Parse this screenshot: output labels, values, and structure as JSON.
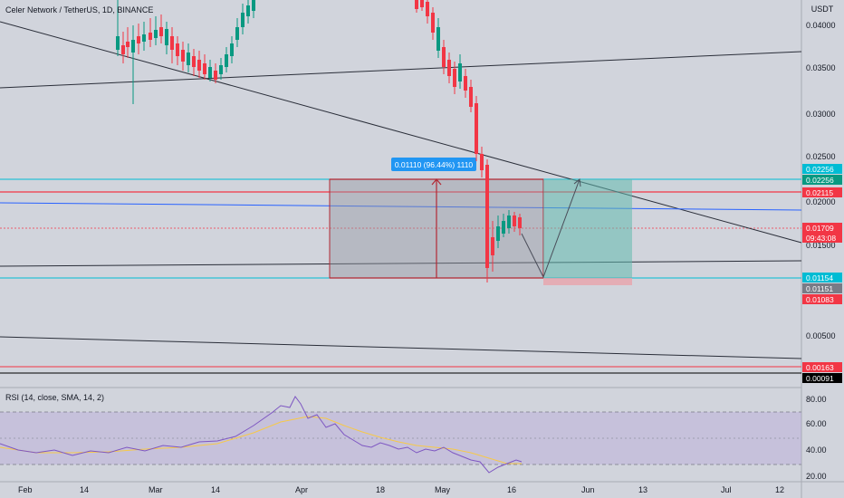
{
  "header": {
    "symbol_title": "Celer Network / TetherUS, 1D, BINANCE"
  },
  "price_axis": {
    "currency": "USDT",
    "ticks": [
      "0.04000",
      "0.03500",
      "0.03000",
      "0.02500",
      "0.02000",
      "0.01500",
      "0.00500"
    ]
  },
  "price_badges": [
    {
      "text": "0.02256",
      "color": "#00bcd4",
      "text_color": "#ffffff"
    },
    {
      "text": "0.02256",
      "color": "#089981",
      "text_color": "#ffffff"
    },
    {
      "text": "0.02115",
      "color": "#f23645",
      "text_color": "#ffffff"
    },
    {
      "text": "0.01709",
      "color": "#f23645",
      "text_color": "#ffffff"
    },
    {
      "text": "09:43:08",
      "color": "#f23645",
      "text_color": "#ffffff"
    },
    {
      "text": "0.01154",
      "color": "#00bcd4",
      "text_color": "#ffffff"
    },
    {
      "text": "0.01151",
      "color": "#787b86",
      "text_color": "#ffffff"
    },
    {
      "text": "0.01083",
      "color": "#f23645",
      "text_color": "#ffffff"
    },
    {
      "text": "0.00163",
      "color": "#f23645",
      "text_color": "#ffffff"
    },
    {
      "text": "0.00091",
      "color": "#000000",
      "text_color": "#ffffff"
    }
  ],
  "measure_label": "0.01110 (96.44%) 1110",
  "rsi": {
    "title": "RSI (14, close, SMA, 14, 2)",
    "ticks": [
      "80.00",
      "60.00",
      "40.00",
      "20.00"
    ],
    "line_color": "#7e57c2",
    "ma_color": "#f7c948"
  },
  "time_axis": {
    "labels": [
      "Feb",
      "14",
      "Mar",
      "14",
      "Apr",
      "18",
      "May",
      "16",
      "Jun",
      "13",
      "Jul",
      "12"
    ]
  },
  "colors": {
    "up": "#089981",
    "down": "#f23645",
    "background": "#d1d4dc"
  }
}
